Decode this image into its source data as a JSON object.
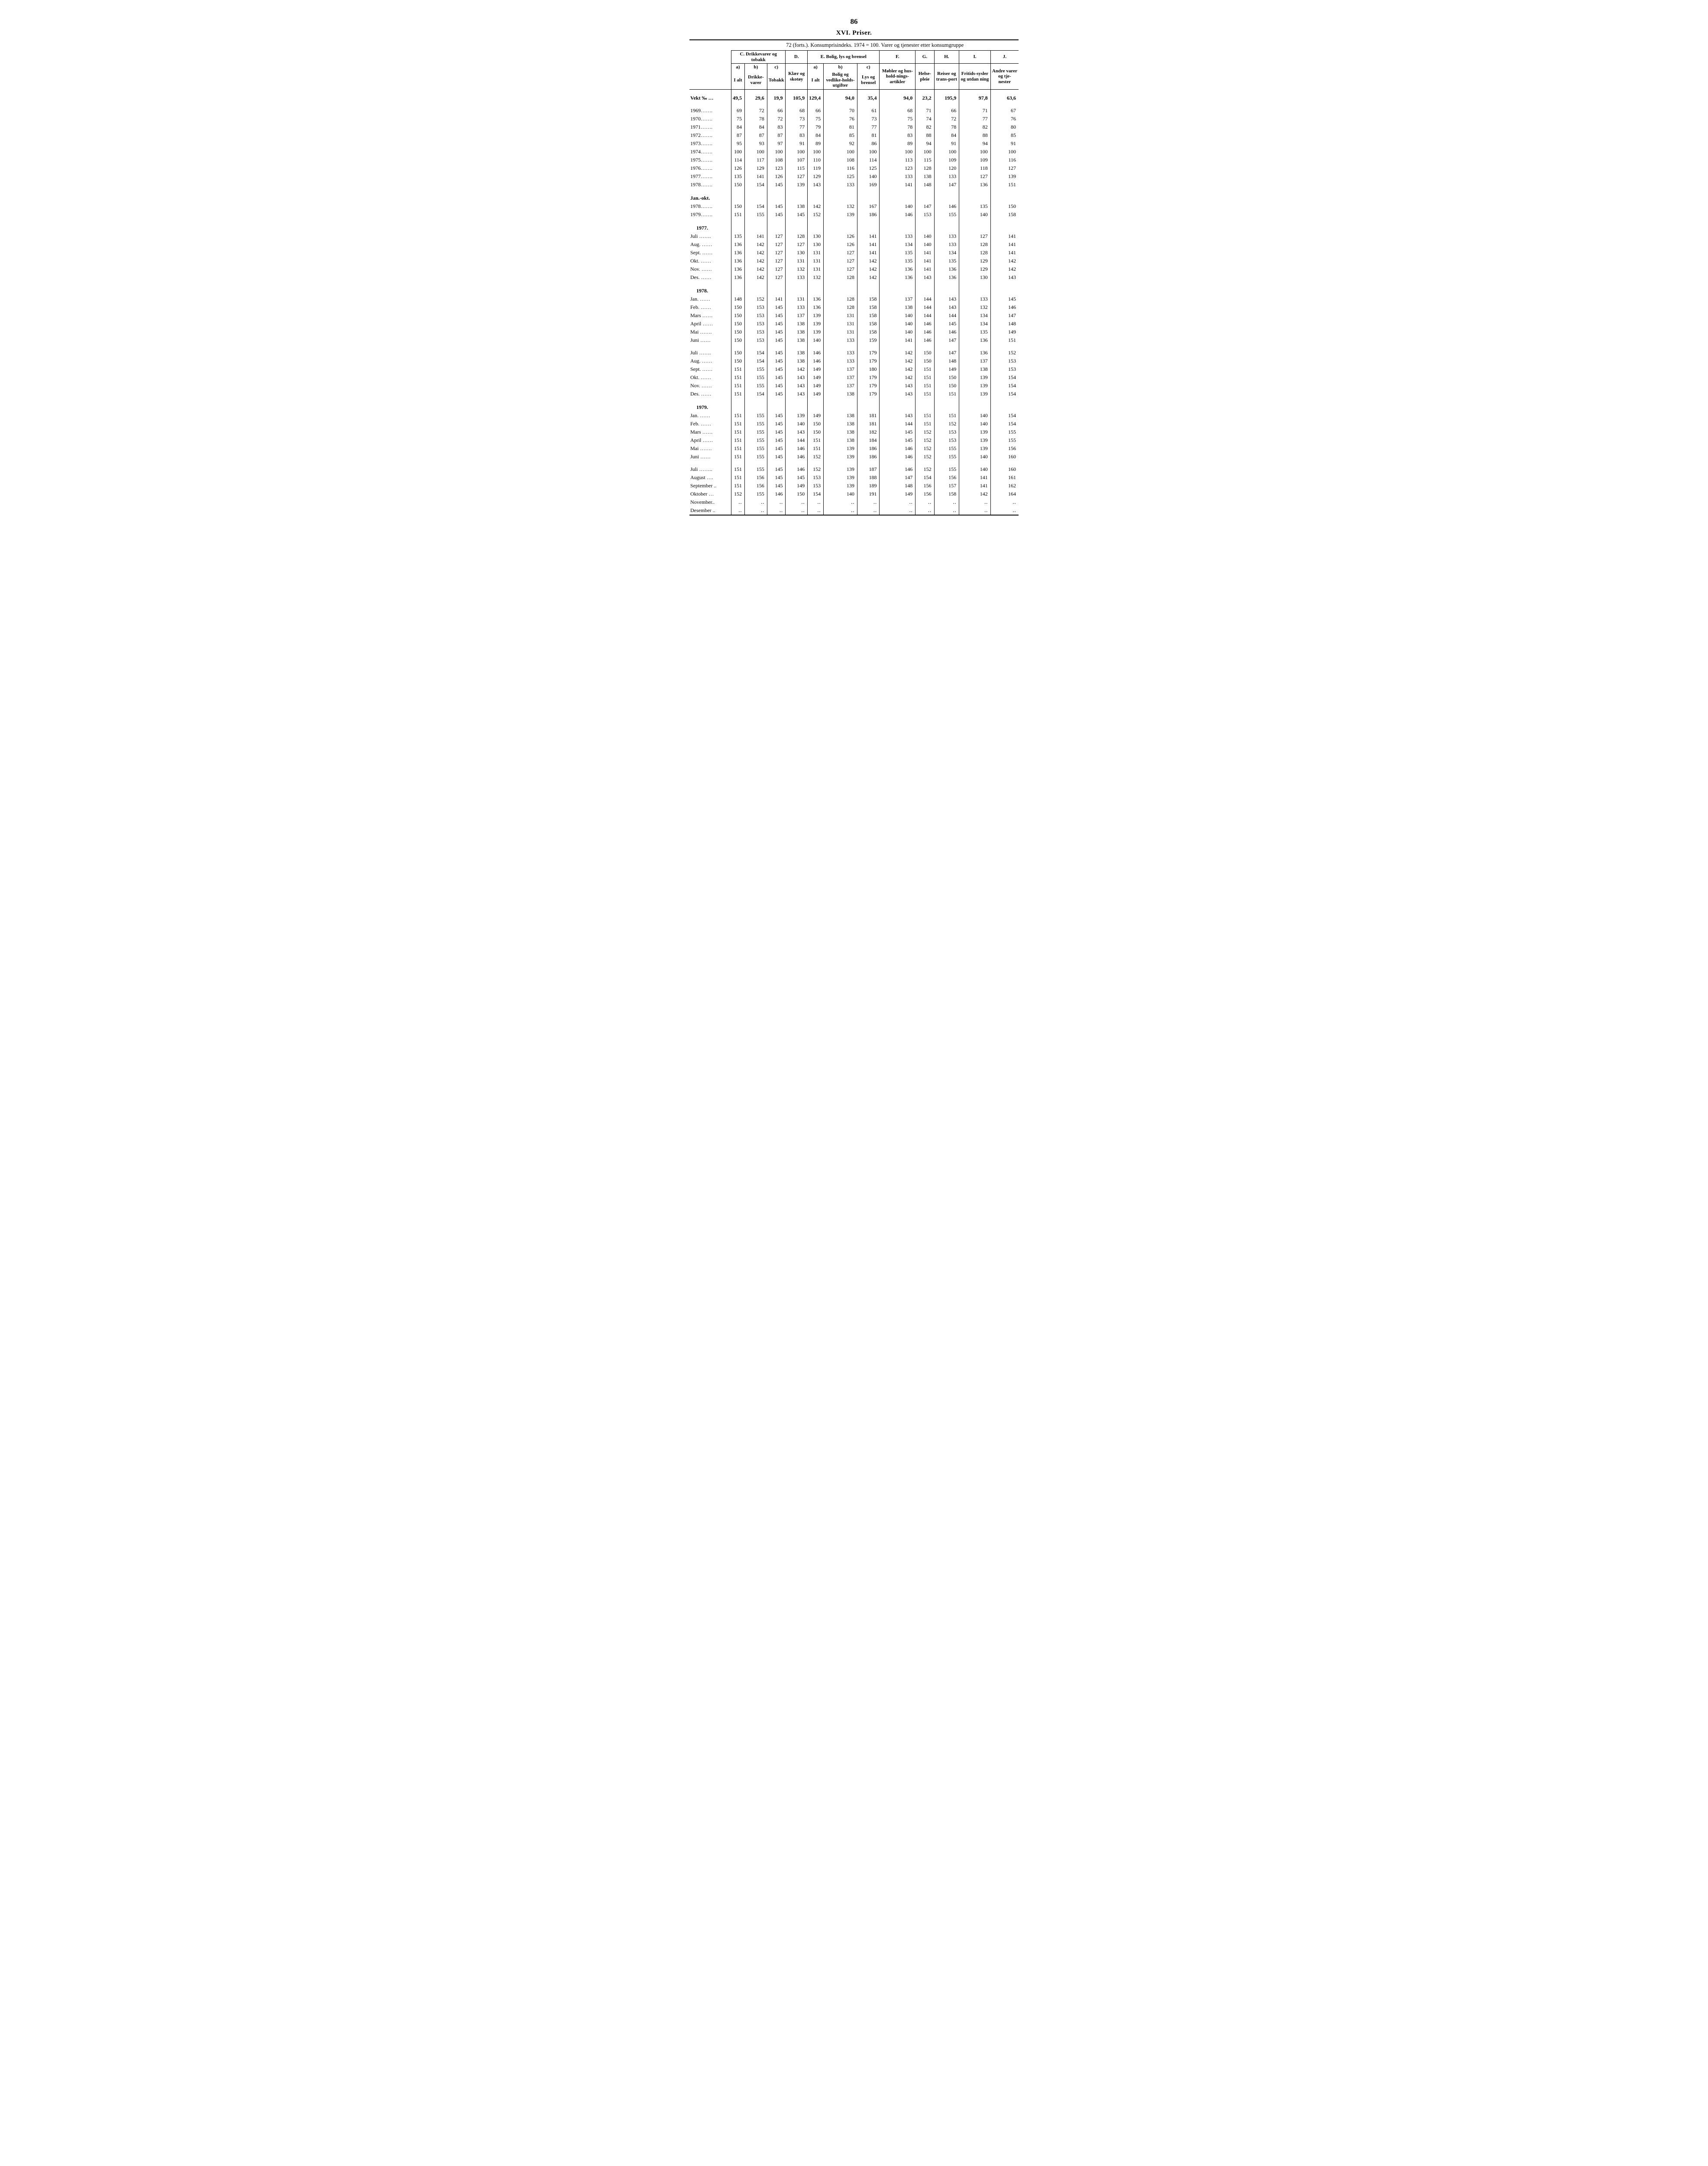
{
  "page_number": "86",
  "section_title": "XVI. Priser.",
  "table_caption": "72 (forts.). Konsumprisindeks. 1974 = 100. Varer og tjenester etter konsumgruppe",
  "group_headers": {
    "C": "C. Drikkevarer og tobakk",
    "D": "D.",
    "E": "E. Bolig, lys og brensel",
    "F": "F.",
    "G": "G.",
    "H": "H.",
    "I": "I.",
    "J": "J."
  },
  "sub_headers": {
    "Ca": "a)",
    "Cb": "b)",
    "Cc": "c)",
    "Ea": "a)",
    "Eb": "b)",
    "Ec": "c)"
  },
  "col_labels": {
    "Ca": "I alt",
    "Cb": "Drikke-varer",
    "Cc": "Tobakk",
    "D": "Klær og skotøy",
    "Ea": "I alt",
    "Eb": "Bolig og vedlike-holds-utgifter",
    "Ec": "Lys og brensel",
    "F": "Møbler og hus-hold-nings-artikler",
    "G": "Helse-pleie",
    "H": "Reiser og trans-port",
    "I": "Fritids-sysler og utdan ning",
    "J": "Andre varer og tje-nester"
  },
  "weight_label": "Vekt ‰ …",
  "weights": [
    "49,5",
    "29,6",
    "19,9",
    "105,9",
    "129,4",
    "94,0",
    "35,4",
    "94,0",
    "23,2",
    "195,9",
    "97,8",
    "63,6"
  ],
  "sections": [
    {
      "rows": [
        {
          "label": "1969…….",
          "v": [
            "69",
            "72",
            "66",
            "68",
            "66",
            "70",
            "61",
            "68",
            "71",
            "66",
            "71",
            "67"
          ]
        },
        {
          "label": "1970…….",
          "v": [
            "75",
            "78",
            "72",
            "73",
            "75",
            "76",
            "73",
            "75",
            "74",
            "72",
            "77",
            "76"
          ]
        },
        {
          "label": "1971…….",
          "v": [
            "84",
            "84",
            "83",
            "77",
            "79",
            "81",
            "77",
            "78",
            "82",
            "78",
            "82",
            "80"
          ]
        },
        {
          "label": "1972…….",
          "v": [
            "87",
            "87",
            "87",
            "83",
            "84",
            "85",
            "81",
            "83",
            "88",
            "84",
            "88",
            "85"
          ]
        },
        {
          "label": "1973…….",
          "v": [
            "95",
            "93",
            "97",
            "91",
            "89",
            "92",
            "86",
            "89",
            "94",
            "91",
            "94",
            "91"
          ]
        },
        {
          "label": "1974…….",
          "v": [
            "100",
            "100",
            "100",
            "100",
            "100",
            "100",
            "100",
            "100",
            "100",
            "100",
            "100",
            "100"
          ]
        },
        {
          "label": "1975…….",
          "v": [
            "114",
            "117",
            "108",
            "107",
            "110",
            "108",
            "114",
            "113",
            "115",
            "109",
            "109",
            "116"
          ]
        },
        {
          "label": "1976…….",
          "v": [
            "126",
            "129",
            "123",
            "115",
            "119",
            "116",
            "125",
            "123",
            "128",
            "120",
            "118",
            "127"
          ]
        },
        {
          "label": "1977…….",
          "v": [
            "135",
            "141",
            "126",
            "127",
            "129",
            "125",
            "140",
            "133",
            "138",
            "133",
            "127",
            "139"
          ]
        },
        {
          "label": "1978…….",
          "v": [
            "150",
            "154",
            "145",
            "139",
            "143",
            "133",
            "169",
            "141",
            "148",
            "147",
            "136",
            "151"
          ]
        }
      ]
    },
    {
      "heading": "Jan.-okt.",
      "rows": [
        {
          "label": "1978…….",
          "v": [
            "150",
            "154",
            "145",
            "138",
            "142",
            "132",
            "167",
            "140",
            "147",
            "146",
            "135",
            "150"
          ]
        },
        {
          "label": "1979…….",
          "v": [
            "151",
            "155",
            "145",
            "145",
            "152",
            "139",
            "186",
            "146",
            "153",
            "155",
            "140",
            "158"
          ]
        }
      ]
    },
    {
      "heading": "1977.",
      "heading_bold": true,
      "rows": [
        {
          "label": "Juli …….",
          "v": [
            "135",
            "141",
            "127",
            "128",
            "130",
            "126",
            "141",
            "133",
            "140",
            "133",
            "127",
            "141"
          ]
        },
        {
          "label": "Aug. ……",
          "v": [
            "136",
            "142",
            "127",
            "127",
            "130",
            "126",
            "141",
            "134",
            "140",
            "133",
            "128",
            "141"
          ]
        },
        {
          "label": "Sept. ……",
          "v": [
            "136",
            "142",
            "127",
            "130",
            "131",
            "127",
            "141",
            "135",
            "141",
            "134",
            "128",
            "141"
          ]
        },
        {
          "label": "Okt. ……",
          "v": [
            "136",
            "142",
            "127",
            "131",
            "131",
            "127",
            "142",
            "135",
            "141",
            "135",
            "129",
            "142"
          ]
        },
        {
          "label": "Nov. ……",
          "v": [
            "136",
            "142",
            "127",
            "132",
            "131",
            "127",
            "142",
            "136",
            "141",
            "136",
            "129",
            "142"
          ]
        },
        {
          "label": "Des. ……",
          "v": [
            "136",
            "142",
            "127",
            "133",
            "132",
            "128",
            "142",
            "136",
            "143",
            "136",
            "130",
            "143"
          ]
        }
      ]
    },
    {
      "heading": "1978.",
      "heading_bold": true,
      "rows": [
        {
          "label": "Jan. ……",
          "v": [
            "148",
            "152",
            "141",
            "131",
            "136",
            "128",
            "158",
            "137",
            "144",
            "143",
            "133",
            "145"
          ]
        },
        {
          "label": "Feb. ……",
          "v": [
            "150",
            "153",
            "145",
            "133",
            "136",
            "128",
            "158",
            "138",
            "144",
            "143",
            "132",
            "146"
          ]
        },
        {
          "label": "Mars ……",
          "v": [
            "150",
            "153",
            "145",
            "137",
            "139",
            "131",
            "158",
            "140",
            "144",
            "144",
            "134",
            "147"
          ]
        },
        {
          "label": "April ……",
          "v": [
            "150",
            "153",
            "145",
            "138",
            "139",
            "131",
            "158",
            "140",
            "146",
            "145",
            "134",
            "148"
          ]
        },
        {
          "label": "Mai …….",
          "v": [
            "150",
            "153",
            "145",
            "138",
            "139",
            "131",
            "158",
            "140",
            "146",
            "146",
            "135",
            "149"
          ]
        },
        {
          "label": "Juni ……",
          "v": [
            "150",
            "153",
            "145",
            "138",
            "140",
            "133",
            "159",
            "141",
            "146",
            "147",
            "136",
            "151"
          ]
        }
      ]
    },
    {
      "rows": [
        {
          "label": "Juli …….",
          "v": [
            "150",
            "154",
            "145",
            "138",
            "146",
            "133",
            "179",
            "142",
            "150",
            "147",
            "136",
            "152"
          ]
        },
        {
          "label": "Aug. ……",
          "v": [
            "150",
            "154",
            "145",
            "138",
            "146",
            "133",
            "179",
            "142",
            "150",
            "148",
            "137",
            "153"
          ]
        },
        {
          "label": "Sept. ……",
          "v": [
            "151",
            "155",
            "145",
            "142",
            "149",
            "137",
            "180",
            "142",
            "151",
            "149",
            "138",
            "153"
          ]
        },
        {
          "label": "Okt. ……",
          "v": [
            "151",
            "155",
            "145",
            "143",
            "149",
            "137",
            "179",
            "142",
            "151",
            "150",
            "139",
            "154"
          ]
        },
        {
          "label": "Nov. ……",
          "v": [
            "151",
            "155",
            "145",
            "143",
            "149",
            "137",
            "179",
            "143",
            "151",
            "150",
            "139",
            "154"
          ]
        },
        {
          "label": "Des. ……",
          "v": [
            "151",
            "154",
            "145",
            "143",
            "149",
            "138",
            "179",
            "143",
            "151",
            "151",
            "139",
            "154"
          ]
        }
      ]
    },
    {
      "heading": "1979.",
      "heading_bold": true,
      "rows": [
        {
          "label": "Jan. ……",
          "v": [
            "151",
            "155",
            "145",
            "139",
            "149",
            "138",
            "181",
            "143",
            "151",
            "151",
            "140",
            "154"
          ]
        },
        {
          "label": "Feb. ……",
          "v": [
            "151",
            "155",
            "145",
            "140",
            "150",
            "138",
            "181",
            "144",
            "151",
            "152",
            "140",
            "154"
          ]
        },
        {
          "label": "Mars ……",
          "v": [
            "151",
            "155",
            "145",
            "143",
            "150",
            "138",
            "182",
            "145",
            "152",
            "153",
            "139",
            "155"
          ]
        },
        {
          "label": "April ……",
          "v": [
            "151",
            "155",
            "145",
            "144",
            "151",
            "138",
            "184",
            "145",
            "152",
            "153",
            "139",
            "155"
          ]
        },
        {
          "label": "Mai …….",
          "v": [
            "151",
            "155",
            "145",
            "146",
            "151",
            "139",
            "186",
            "146",
            "152",
            "155",
            "139",
            "156"
          ]
        },
        {
          "label": "Juni ……",
          "v": [
            "151",
            "155",
            "145",
            "146",
            "152",
            "139",
            "186",
            "146",
            "152",
            "155",
            "140",
            "160"
          ]
        }
      ]
    },
    {
      "rows": [
        {
          "label": "Juli ……..",
          "v": [
            "151",
            "155",
            "145",
            "146",
            "152",
            "139",
            "187",
            "146",
            "152",
            "155",
            "140",
            "160"
          ]
        },
        {
          "label": "August ….",
          "v": [
            "151",
            "156",
            "145",
            "145",
            "153",
            "139",
            "188",
            "147",
            "154",
            "156",
            "141",
            "161"
          ]
        },
        {
          "label": "September ..",
          "v": [
            "151",
            "156",
            "145",
            "149",
            "153",
            "139",
            "189",
            "148",
            "156",
            "157",
            "141",
            "162"
          ]
        },
        {
          "label": "Oktober …",
          "v": [
            "152",
            "155",
            "146",
            "150",
            "154",
            "140",
            "191",
            "149",
            "156",
            "158",
            "142",
            "164"
          ]
        },
        {
          "label": "November..",
          "v": [
            "‥",
            "‥",
            "‥",
            "‥",
            "‥",
            "‥",
            "‥",
            "‥",
            "‥",
            "‥",
            "‥",
            "‥"
          ]
        },
        {
          "label": "Desember ..",
          "v": [
            "‥",
            "‥",
            "‥",
            "‥",
            "‥",
            "‥",
            "‥",
            "‥",
            "‥",
            "‥",
            "‥",
            "‥"
          ]
        }
      ]
    }
  ]
}
